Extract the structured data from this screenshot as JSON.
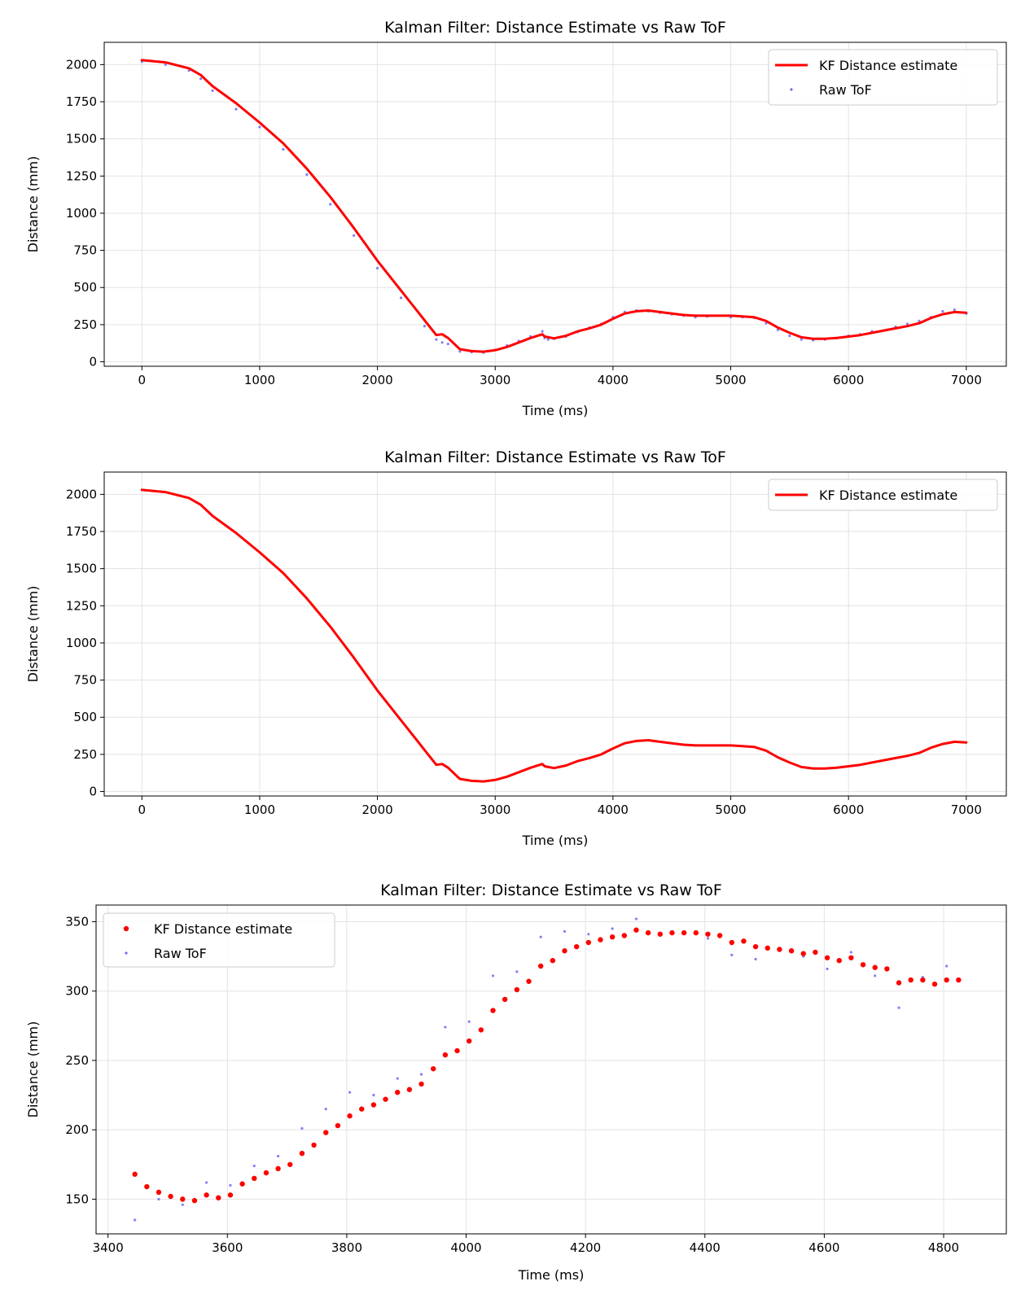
{
  "chart_data": [
    {
      "type": "line",
      "title": "Kalman Filter: Distance Estimate vs Raw ToF",
      "xlabel": "Time (ms)",
      "ylabel": "Distance (mm)",
      "xlim": [
        -320,
        7340
      ],
      "ylim": [
        -30,
        2150
      ],
      "xticks": [
        0,
        1000,
        2000,
        3000,
        4000,
        5000,
        6000,
        7000
      ],
      "yticks": [
        0,
        250,
        500,
        750,
        1000,
        1250,
        1500,
        1750,
        2000
      ],
      "grid": true,
      "legend_position": "top-right",
      "series": [
        {
          "name": "KF Distance estimate",
          "kind": "line",
          "color": "#ff0000",
          "x": [
            0,
            200,
            400,
            500,
            600,
            800,
            1000,
            1200,
            1400,
            1600,
            1800,
            2000,
            2200,
            2400,
            2500,
            2550,
            2600,
            2700,
            2800,
            2900,
            3000,
            3100,
            3200,
            3300,
            3400,
            3420,
            3450,
            3500,
            3600,
            3700,
            3800,
            3900,
            4000,
            4100,
            4200,
            4300,
            4400,
            4500,
            4600,
            4700,
            4800,
            5000,
            5100,
            5200,
            5300,
            5400,
            5500,
            5600,
            5700,
            5800,
            5900,
            6000,
            6100,
            6200,
            6400,
            6500,
            6600,
            6700,
            6800,
            6900,
            7000
          ],
          "y": [
            2030,
            2015,
            1975,
            1930,
            1855,
            1740,
            1610,
            1470,
            1300,
            1110,
            900,
            680,
            480,
            280,
            180,
            185,
            160,
            85,
            72,
            68,
            78,
            100,
            130,
            160,
            185,
            170,
            165,
            158,
            175,
            205,
            225,
            250,
            290,
            325,
            340,
            345,
            335,
            325,
            315,
            310,
            310,
            310,
            305,
            300,
            275,
            230,
            195,
            165,
            155,
            155,
            160,
            170,
            180,
            195,
            225,
            240,
            260,
            295,
            320,
            335,
            330
          ]
        },
        {
          "name": "Raw ToF",
          "kind": "scatter",
          "color": "#6b6bf5",
          "x": [
            0,
            200,
            400,
            500,
            600,
            800,
            1000,
            1200,
            1400,
            1600,
            1800,
            2000,
            2200,
            2400,
            2500,
            2550,
            2600,
            2700,
            2800,
            2900,
            3000,
            3100,
            3200,
            3300,
            3400,
            3420,
            3450,
            3500,
            3600,
            3700,
            3800,
            3900,
            4000,
            4100,
            4200,
            4300,
            4400,
            4500,
            4600,
            4700,
            4800,
            5000,
            5100,
            5200,
            5300,
            5400,
            5500,
            5600,
            5700,
            5800,
            5900,
            6000,
            6100,
            6200,
            6400,
            6500,
            6600,
            6700,
            6800,
            6900,
            7000
          ],
          "y": [
            2020,
            2000,
            1960,
            1905,
            1825,
            1700,
            1580,
            1430,
            1260,
            1060,
            850,
            630,
            430,
            240,
            150,
            130,
            120,
            70,
            65,
            62,
            80,
            110,
            140,
            170,
            205,
            160,
            150,
            155,
            170,
            200,
            230,
            255,
            300,
            335,
            345,
            340,
            330,
            320,
            310,
            300,
            305,
            300,
            300,
            295,
            260,
            215,
            175,
            150,
            145,
            150,
            160,
            175,
            185,
            205,
            235,
            255,
            275,
            300,
            340,
            350,
            325
          ]
        }
      ]
    },
    {
      "type": "line",
      "title": "Kalman Filter: Distance Estimate vs Raw ToF",
      "xlabel": "Time (ms)",
      "ylabel": "Distance (mm)",
      "xlim": [
        -320,
        7340
      ],
      "ylim": [
        -30,
        2150
      ],
      "xticks": [
        0,
        1000,
        2000,
        3000,
        4000,
        5000,
        6000,
        7000
      ],
      "yticks": [
        0,
        250,
        500,
        750,
        1000,
        1250,
        1500,
        1750,
        2000
      ],
      "grid": true,
      "legend_position": "top-right",
      "series": [
        {
          "name": "KF Distance estimate",
          "kind": "line",
          "color": "#ff0000",
          "x": [
            0,
            200,
            400,
            500,
            600,
            800,
            1000,
            1200,
            1400,
            1600,
            1800,
            2000,
            2200,
            2400,
            2500,
            2550,
            2600,
            2700,
            2800,
            2900,
            3000,
            3100,
            3200,
            3300,
            3400,
            3420,
            3450,
            3500,
            3600,
            3700,
            3800,
            3900,
            4000,
            4100,
            4200,
            4300,
            4400,
            4500,
            4600,
            4700,
            4800,
            5000,
            5100,
            5200,
            5300,
            5400,
            5500,
            5600,
            5700,
            5800,
            5900,
            6000,
            6100,
            6200,
            6400,
            6500,
            6600,
            6700,
            6800,
            6900,
            7000
          ],
          "y": [
            2030,
            2015,
            1975,
            1930,
            1855,
            1740,
            1610,
            1470,
            1300,
            1110,
            900,
            680,
            480,
            280,
            180,
            185,
            160,
            85,
            72,
            68,
            78,
            100,
            130,
            160,
            185,
            170,
            165,
            158,
            175,
            205,
            225,
            250,
            290,
            325,
            340,
            345,
            335,
            325,
            315,
            310,
            310,
            310,
            305,
            300,
            275,
            230,
            195,
            165,
            155,
            155,
            160,
            170,
            180,
            195,
            225,
            240,
            260,
            295,
            320,
            335,
            330
          ]
        }
      ]
    },
    {
      "type": "scatter",
      "title": "Kalman Filter: Distance Estimate vs Raw ToF",
      "xlabel": "Time (ms)",
      "ylabel": "Distance (mm)",
      "xlim": [
        3380,
        4905
      ],
      "ylim": [
        125,
        362
      ],
      "xticks": [
        3400,
        3600,
        3800,
        4000,
        4200,
        4400,
        4600,
        4800
      ],
      "yticks": [
        150,
        200,
        250,
        300,
        350
      ],
      "grid": true,
      "legend_position": "top-left",
      "series": [
        {
          "name": "KF Distance estimate",
          "kind": "scatter",
          "color": "#ff0000",
          "x": [
            3445,
            3465,
            3485,
            3505,
            3525,
            3545,
            3565,
            3585,
            3605,
            3625,
            3645,
            3665,
            3685,
            3705,
            3725,
            3745,
            3765,
            3785,
            3805,
            3825,
            3845,
            3865,
            3885,
            3905,
            3925,
            3945,
            3965,
            3985,
            4005,
            4025,
            4045,
            4065,
            4085,
            4105,
            4125,
            4145,
            4165,
            4185,
            4205,
            4225,
            4245,
            4265,
            4285,
            4305,
            4325,
            4345,
            4365,
            4385,
            4405,
            4425,
            4445,
            4465,
            4485,
            4505,
            4525,
            4545,
            4565,
            4585,
            4605,
            4625,
            4645,
            4665,
            4685,
            4705,
            4725,
            4745,
            4765,
            4785,
            4805,
            4825
          ],
          "y": [
            168,
            159,
            155,
            152,
            150,
            149,
            153,
            151,
            153,
            161,
            165,
            169,
            172,
            175,
            183,
            189,
            198,
            203,
            210,
            215,
            218,
            222,
            227,
            229,
            233,
            244,
            254,
            257,
            264,
            272,
            286,
            294,
            301,
            307,
            318,
            322,
            329,
            332,
            335,
            337,
            339,
            340,
            344,
            342,
            341,
            342,
            342,
            342,
            341,
            340,
            335,
            336,
            332,
            331,
            330,
            329,
            327,
            328,
            324,
            322,
            324,
            319,
            317,
            316,
            306,
            308,
            308,
            305,
            308,
            308
          ]
        },
        {
          "name": "Raw ToF",
          "kind": "scatter",
          "color": "#6b6bf5",
          "x": [
            3445,
            3485,
            3525,
            3565,
            3605,
            3645,
            3685,
            3725,
            3765,
            3805,
            3845,
            3885,
            3925,
            3965,
            4005,
            4045,
            4085,
            4125,
            4165,
            4205,
            4245,
            4285,
            4325,
            4365,
            4405,
            4445,
            4485,
            4525,
            4565,
            4605,
            4645,
            4685,
            4725,
            4765,
            4805
          ],
          "y": [
            135,
            150,
            146,
            162,
            160,
            174,
            181,
            201,
            215,
            227,
            225,
            237,
            240,
            274,
            278,
            311,
            314,
            339,
            343,
            341,
            345,
            352,
            342,
            342,
            338,
            326,
            323,
            331,
            325,
            316,
            328,
            311,
            288,
            310,
            318
          ]
        }
      ]
    }
  ]
}
